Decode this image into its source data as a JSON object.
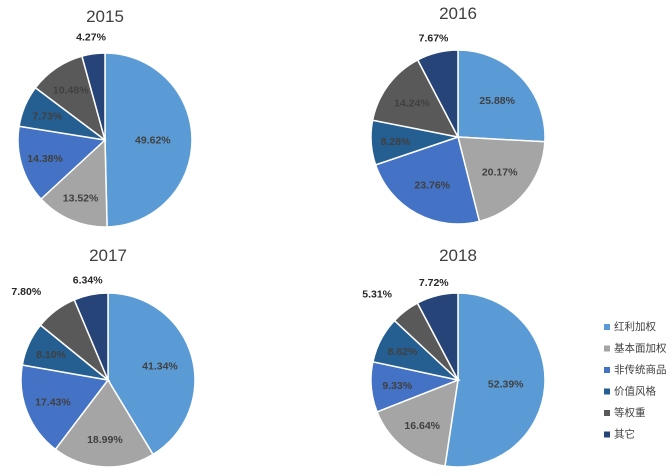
{
  "legend": [
    {
      "label": "红利加权",
      "color": "#5B9BD5"
    },
    {
      "label": "基本面加权",
      "color": "#A5A5A5"
    },
    {
      "label": "非传统商品",
      "color": "#4472C4"
    },
    {
      "label": "价值风格",
      "color": "#255E91"
    },
    {
      "label": "等权重",
      "color": "#595959"
    },
    {
      "label": "其它",
      "color": "#264478"
    }
  ],
  "chart_data": [
    {
      "type": "pie",
      "title": "2015",
      "categories": [
        "红利加权",
        "基本面加权",
        "非传统商品",
        "价值风格",
        "等权重",
        "其它"
      ],
      "values": [
        49.62,
        13.52,
        14.38,
        7.73,
        10.48,
        4.27
      ],
      "labels": [
        "49.62%",
        "13.52%",
        "14.38%",
        "7.73%",
        "10.48%",
        "4.27%"
      ]
    },
    {
      "type": "pie",
      "title": "2016",
      "categories": [
        "红利加权",
        "基本面加权",
        "非传统商品",
        "价值风格",
        "等权重",
        "其它"
      ],
      "values": [
        25.88,
        20.17,
        23.76,
        8.28,
        14.24,
        7.67
      ],
      "labels": [
        "25.88%",
        "20.17%",
        "23.76%",
        "8.28%",
        "14.24%",
        "7.67%"
      ]
    },
    {
      "type": "pie",
      "title": "2017",
      "categories": [
        "红利加权",
        "基本面加权",
        "非传统商品",
        "价值风格",
        "等权重",
        "其它"
      ],
      "values": [
        41.34,
        18.99,
        17.43,
        8.1,
        7.8,
        6.34
      ],
      "labels": [
        "41.34%",
        "18.99%",
        "17.43%",
        "8.10%",
        "7.80%",
        "6.34%"
      ]
    },
    {
      "type": "pie",
      "title": "2018",
      "categories": [
        "红利加权",
        "基本面加权",
        "非传统商品",
        "价值风格",
        "等权重",
        "其它"
      ],
      "values": [
        52.39,
        16.64,
        9.33,
        8.62,
        5.31,
        7.72
      ],
      "labels": [
        "52.39%",
        "16.64%",
        "9.33%",
        "8.62%",
        "5.31%",
        "7.72%"
      ]
    }
  ]
}
